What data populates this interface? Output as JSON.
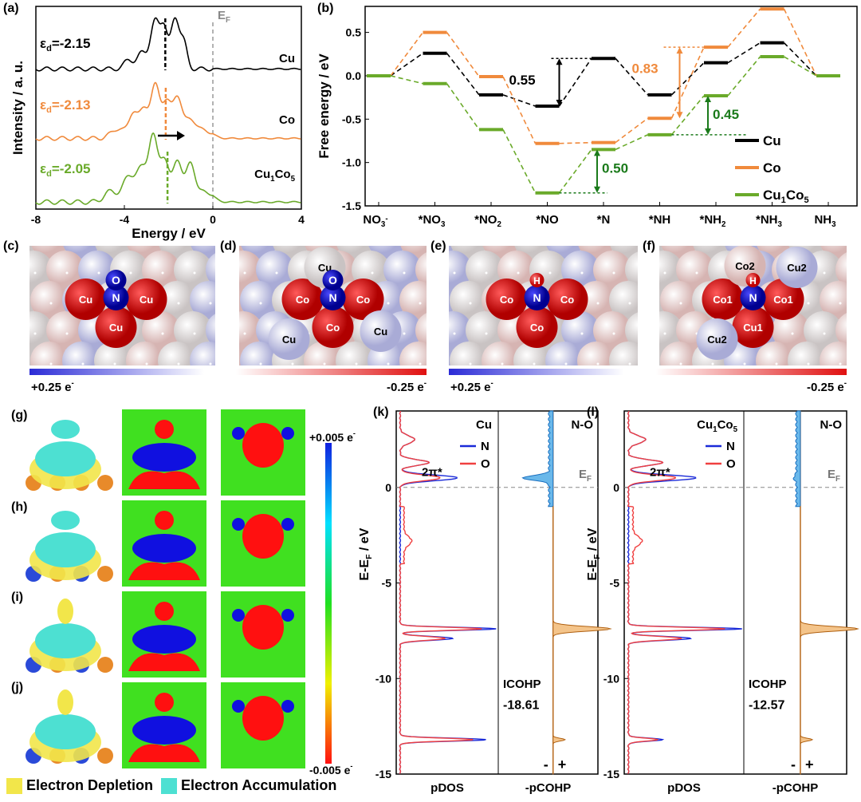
{
  "panel_labels": {
    "a": "(a)",
    "b": "(b)",
    "c": "(c)",
    "d": "(d)",
    "e": "(e)",
    "f": "(f)",
    "g": "(g)",
    "h": "(h)",
    "i": "(i)",
    "j": "(j)",
    "k": "(k)",
    "l": "(l)"
  },
  "chart_data": [
    {
      "id": "a",
      "type": "line",
      "xlabel": "Energy / eV",
      "ylabel": "Intensity / a. u.",
      "xlim": [
        -8,
        4
      ],
      "xticks": [
        "-8",
        "-4",
        "0",
        "4"
      ],
      "fermi_label": "E",
      "fermi_sub": "F",
      "series": [
        {
          "name": "Cu",
          "color": "#000000",
          "d_center": "ε",
          "d_center_sub": "d",
          "d_center_value": "=-2.15",
          "d_band_center": -2.15,
          "peaks": [
            [
              -3.8,
              0.15,
              0.2
            ],
            [
              -3.2,
              0.25,
              0.2
            ],
            [
              -2.6,
              0.75,
              0.22
            ],
            [
              -2.2,
              0.55,
              0.15
            ],
            [
              -1.7,
              0.8,
              0.2
            ],
            [
              -1.3,
              0.35,
              0.15
            ]
          ]
        },
        {
          "name": "Co",
          "color": "#f08a3c",
          "d_center": "ε",
          "d_center_sub": "d",
          "d_center_value": "=-2.13",
          "d_band_center": -2.13,
          "peaks": [
            [
              -4.3,
              0.15,
              0.3
            ],
            [
              -3.6,
              0.4,
              0.2
            ],
            [
              -3.1,
              0.45,
              0.2
            ],
            [
              -2.6,
              0.8,
              0.2
            ],
            [
              -2.1,
              0.55,
              0.2
            ],
            [
              -1.6,
              0.65,
              0.2
            ],
            [
              -1.0,
              0.3,
              0.25
            ],
            [
              -0.3,
              0.12,
              0.3
            ]
          ]
        },
        {
          "name": "Cu1Co5",
          "name_main": "Cu",
          "name_sub1": "1",
          "name_mid": "Co",
          "name_sub2": "5",
          "color": "#6aaa2a",
          "d_center": "ε",
          "d_center_sub": "d",
          "d_center_value": "=-2.05",
          "d_band_center": -2.05,
          "peaks": [
            [
              -4.6,
              0.15,
              0.3
            ],
            [
              -3.8,
              0.35,
              0.25
            ],
            [
              -3.2,
              0.45,
              0.25
            ],
            [
              -2.7,
              0.85,
              0.2
            ],
            [
              -2.2,
              0.6,
              0.2
            ],
            [
              -1.6,
              0.6,
              0.2
            ],
            [
              -1.0,
              0.55,
              0.2
            ],
            [
              -0.3,
              0.15,
              0.3
            ]
          ]
        }
      ]
    },
    {
      "id": "b",
      "type": "line",
      "ylabel": "Free energy / eV",
      "ylim": [
        -1.5,
        0.8
      ],
      "yticks": [
        "0.5",
        "0.0",
        "-0.5",
        "-1.0",
        "-1.5"
      ],
      "categories": [
        [
          "NO",
          "3",
          "-"
        ],
        [
          "*NO",
          "3",
          ""
        ],
        [
          "*NO",
          "2",
          ""
        ],
        [
          "*NO",
          "",
          ""
        ],
        [
          "*N",
          "",
          ""
        ],
        [
          "*NH",
          "",
          ""
        ],
        [
          "*NH",
          "2",
          ""
        ],
        [
          "*NH",
          "3",
          ""
        ],
        [
          "NH",
          "3",
          ""
        ]
      ],
      "series": [
        {
          "name": "Cu",
          "color": "#000000",
          "values": [
            0,
            0.26,
            -0.22,
            -0.35,
            0.2,
            -0.22,
            0.15,
            0.38,
            0
          ]
        },
        {
          "name": "Co",
          "color": "#f08a3c",
          "values": [
            0,
            0.5,
            -0.01,
            -0.78,
            -0.77,
            -0.49,
            0.33,
            0.77,
            0
          ]
        },
        {
          "name": "Cu1Co5",
          "legend_main": "Cu",
          "legend_sub1": "1",
          "legend_mid": "Co",
          "legend_sub2": "5",
          "color": "#6aaa2a",
          "values": [
            0,
            -0.09,
            -0.62,
            -1.35,
            -0.85,
            -0.68,
            -0.23,
            0.22,
            0
          ]
        }
      ],
      "annotations": [
        {
          "text": "0.55",
          "color": "#000000"
        },
        {
          "text": "0.83",
          "color": "#f08a3c"
        },
        {
          "text": "0.45",
          "color": "#1a7a1a"
        },
        {
          "text": "0.50",
          "color": "#1a7a1a"
        }
      ]
    },
    {
      "id": "k",
      "type": "line",
      "title": "Cu",
      "ylabel_main": "E-E",
      "ylabel_sub": "F",
      "ylabel_tail": " / eV",
      "ylim": [
        -15,
        4
      ],
      "yticks": [
        "0",
        "-5",
        "-10",
        "-15"
      ],
      "xlabels": [
        "pDOS",
        "-pCOHP"
      ],
      "legend": [
        "N",
        "O"
      ],
      "cohp_label": "N-O",
      "pistar": "2π*",
      "ef": "E",
      "ef_sub": "F",
      "icohp_label": "ICOHP",
      "icohp_value": "-18.61",
      "sign_neg": "-",
      "sign_pos": "+"
    },
    {
      "id": "l",
      "type": "line",
      "title_main": "Cu",
      "title_sub1": "1",
      "title_mid": "Co",
      "title_sub2": "5",
      "ylabel_main": "E-E",
      "ylabel_sub": "F",
      "ylabel_tail": " / eV",
      "ylim": [
        -15,
        4
      ],
      "yticks": [
        "0",
        "-5",
        "-10",
        "-15"
      ],
      "xlabels": [
        "pDOS",
        "-pCOHP"
      ],
      "legend": [
        "N",
        "O"
      ],
      "cohp_label": "N-O",
      "pistar": "2π*",
      "ef": "E",
      "ef_sub": "F",
      "icohp_label": "ICOHP",
      "icohp_value": "-12.57",
      "sign_neg": "-",
      "sign_pos": "+"
    }
  ],
  "surfaces": {
    "c": {
      "atoms": [
        "Cu",
        "Cu",
        "Cu"
      ],
      "top": "O",
      "mid": "N"
    },
    "d": {
      "atoms": [
        "Co",
        "Co",
        "Co",
        "Cu",
        "Cu",
        "Cu"
      ],
      "top": "O",
      "mid": "N"
    },
    "e": {
      "atoms": [
        "Co",
        "Co",
        "Co"
      ],
      "top": "H",
      "mid": "N"
    },
    "f": {
      "atoms": [
        "Co1",
        "Co1",
        "Cu1",
        "Cu2",
        "Co2",
        "Cu2"
      ],
      "top": "H",
      "mid": "N"
    }
  },
  "charge_scale": {
    "positive": "+0.25 e",
    "negative": "-0.25 e",
    "sup": "-"
  },
  "diff_scale": {
    "max": "+0.005 e",
    "min": "-0.005 e",
    "sup": "-"
  },
  "legend": {
    "depletion": "Electron Depletion",
    "accumulation": "Electron Accumulation"
  }
}
